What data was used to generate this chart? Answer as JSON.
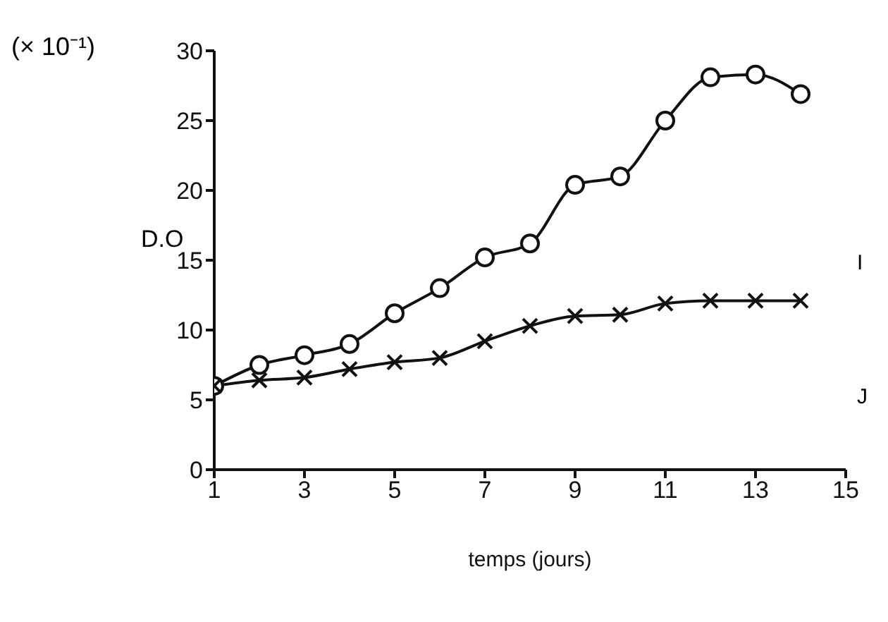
{
  "chart_data": {
    "type": "line",
    "xlabel": "temps (jours)",
    "ylabel": "D.O",
    "annotations": [
      "(× 10⁻¹)",
      "I",
      "J"
    ],
    "x": [
      1,
      2,
      3,
      4,
      5,
      6,
      7,
      8,
      9,
      10,
      11,
      12,
      13,
      14
    ],
    "xlim": [
      1,
      15
    ],
    "xticks": [
      1,
      3,
      5,
      7,
      9,
      11,
      13,
      15
    ],
    "ylim": [
      0,
      30
    ],
    "yticks": [
      0,
      5,
      10,
      15,
      20,
      25,
      30
    ],
    "grid": false,
    "legend": false,
    "series": [
      {
        "color": "#111111",
        "marker": "circle",
        "values": [
          6.0,
          7.5,
          8.2,
          9.0,
          11.2,
          13.0,
          15.2,
          16.2,
          20.4,
          21.0,
          25.0,
          28.1,
          28.3,
          26.9
        ]
      },
      {
        "color": "#111111",
        "marker": "cross",
        "values": [
          6.0,
          6.4,
          6.6,
          7.2,
          7.7,
          8.0,
          9.2,
          10.3,
          11.0,
          11.1,
          11.9,
          12.1,
          12.1,
          12.1
        ]
      }
    ]
  }
}
